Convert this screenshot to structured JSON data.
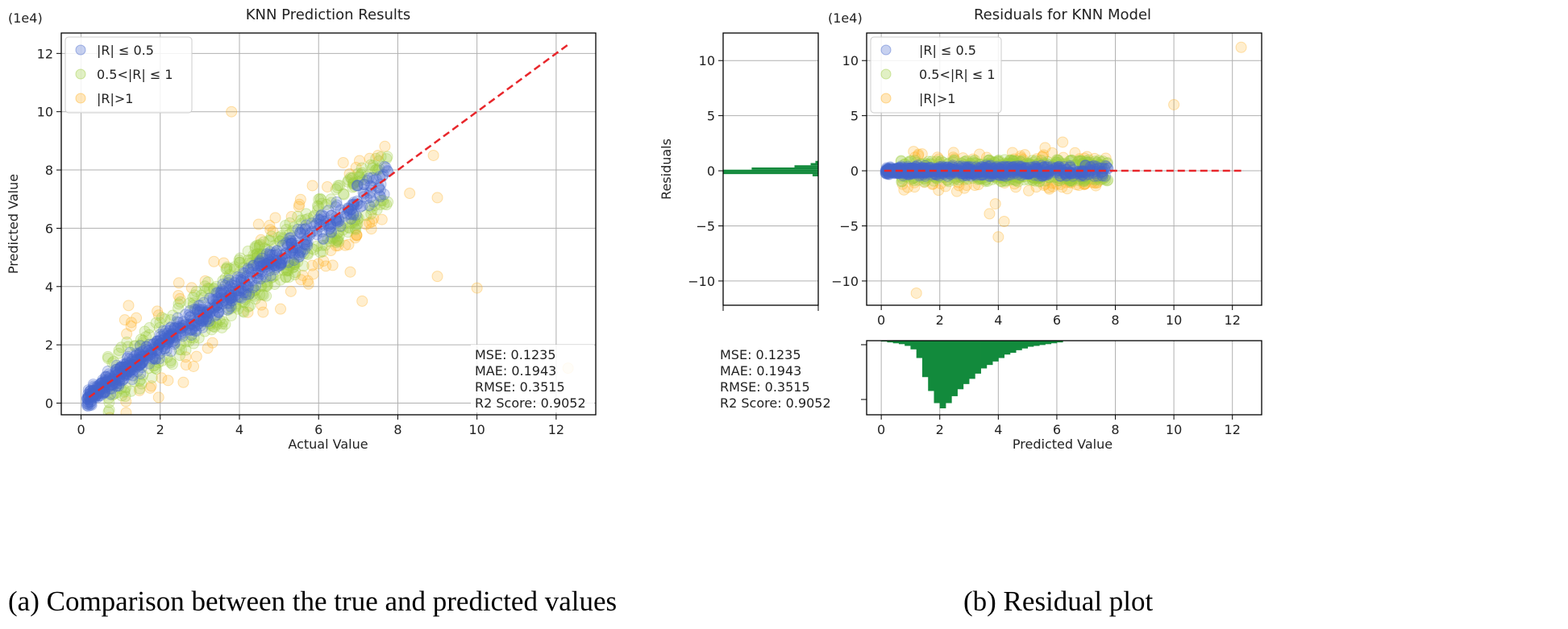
{
  "chart_data": [
    {
      "id": "left",
      "type": "scatter",
      "title": "KNN Prediction Results",
      "xlabel": "Actual Value",
      "ylabel": "Predicted Value",
      "offset_label": "(1e4)",
      "xlim": [
        -0.5,
        13
      ],
      "ylim": [
        -0.4,
        12.7
      ],
      "xticks": [
        0,
        2,
        4,
        6,
        8,
        10,
        12
      ],
      "yticks": [
        0,
        2,
        4,
        6,
        8,
        10,
        12
      ],
      "grid": true,
      "reference_line": {
        "from": [
          0.2,
          0.2
        ],
        "to": [
          12.3,
          12.3
        ],
        "color": "#e8262b",
        "style": "dashed"
      },
      "legend": {
        "placement": "top-left",
        "entries": [
          "|R| ≤ 0.5",
          "0.5<|R| ≤ 1",
          "|R|>1"
        ]
      },
      "series": [
        {
          "name": "|R| ≤ 0.5",
          "color": "#4466cc"
        },
        {
          "name": "0.5<|R| ≤ 1",
          "color": "#9ccc3c"
        },
        {
          "name": "|R|>1",
          "color": "#ffb020"
        }
      ],
      "outliers": [
        [
          3.8,
          10.0
        ],
        [
          8.9,
          8.5
        ],
        [
          9.0,
          7.05
        ],
        [
          9.0,
          4.35
        ],
        [
          10.0,
          3.95
        ],
        [
          12.3,
          1.2
        ],
        [
          7.5,
          8.5
        ],
        [
          8.3,
          7.2
        ],
        [
          1.2,
          3.35
        ],
        [
          7.1,
          3.5
        ],
        [
          6.8,
          4.5
        ],
        [
          7.6,
          6.3
        ]
      ],
      "stats": [
        "MSE: 0.1235",
        "MAE: 0.1943",
        "RMSE: 0.3515",
        "R2 Score: 0.9052"
      ]
    },
    {
      "id": "right",
      "type": "scatter",
      "title": "Residuals for KNN Model",
      "xlabel": "Predicted Value",
      "ylabel": "Residuals",
      "offset_label": "(1e4)",
      "xlim": [
        -0.5,
        13
      ],
      "ylim": [
        -12.2,
        12.5
      ],
      "xticks": [
        0,
        2,
        4,
        6,
        8,
        10,
        12
      ],
      "yticks": [
        -10,
        -5,
        0,
        5,
        10
      ],
      "grid": true,
      "reference_line": {
        "from": [
          0.1,
          0
        ],
        "to": [
          12.3,
          0
        ],
        "color": "#e8262b",
        "style": "dashed"
      },
      "legend": {
        "placement": "top-left",
        "entries": [
          "|R| ≤ 0.5",
          "0.5<|R| ≤ 1",
          "|R|>1"
        ]
      },
      "series": [
        {
          "name": "|R| ≤ 0.5",
          "color": "#4466cc"
        },
        {
          "name": "0.5<|R| ≤ 1",
          "color": "#9ccc3c"
        },
        {
          "name": "|R|>1",
          "color": "#ffb020"
        }
      ],
      "outliers": [
        [
          12.3,
          11.2
        ],
        [
          10.0,
          6.0
        ],
        [
          1.2,
          -11.1
        ],
        [
          4.0,
          -6.0
        ],
        [
          4.2,
          -4.6
        ],
        [
          3.7,
          -3.9
        ],
        [
          3.9,
          -3.0
        ],
        [
          6.2,
          2.6
        ],
        [
          5.6,
          2.1
        ]
      ],
      "stats": [
        "MSE: 0.1235",
        "MAE: 0.1943",
        "RMSE: 0.3515",
        "R2 Score: 0.9052"
      ]
    },
    {
      "id": "residual-histogram",
      "type": "bar",
      "title": "",
      "orientation": "horizontal",
      "color": "#128a3c",
      "bins": [
        {
          "y": -0.2,
          "value": 100
        },
        {
          "y": 0.0,
          "value": 100
        },
        {
          "y": 0.2,
          "value": 70
        },
        {
          "y": 0.4,
          "value": 25
        },
        {
          "y": 0.6,
          "value": 8
        },
        {
          "y": 0.8,
          "value": 3
        },
        {
          "y": -0.4,
          "value": 6
        }
      ]
    },
    {
      "id": "predicted-histogram",
      "type": "bar",
      "title": "",
      "xlabel": "Predicted Value",
      "color": "#128a3c",
      "bin_width": 0.2,
      "bins_start": 0,
      "values": [
        1,
        2,
        3,
        4,
        6,
        10,
        20,
        42,
        58,
        72,
        78,
        72,
        64,
        56,
        50,
        44,
        38,
        32,
        28,
        24,
        20,
        16,
        14,
        11,
        9,
        7,
        6,
        5,
        4,
        3,
        2
      ]
    }
  ],
  "captions": {
    "a": "(a) Comparison between the true and predicted values",
    "b": "(b) Residual plot"
  }
}
